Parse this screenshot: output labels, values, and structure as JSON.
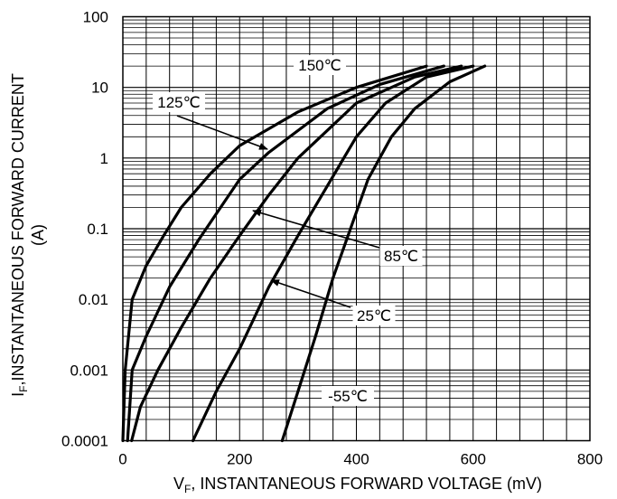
{
  "chart_data": {
    "type": "line",
    "xlabel": {
      "main": "V",
      "sub": "F",
      "rest": ", INSTANTANEOUS FORWARD VOLTAGE (mV)"
    },
    "ylabel": {
      "main": "I",
      "sub": "F",
      "rest": ",INSTANTANEOUS FORWARD CURRENT",
      "line2": "(A)"
    },
    "xlim": [
      0,
      800
    ],
    "ylim": [
      0.0001,
      100
    ],
    "yscale": "log",
    "grid": true,
    "x_ticks": [
      "0",
      "200",
      "400",
      "600",
      "800"
    ],
    "x_tick_values": [
      0,
      200,
      400,
      600,
      800
    ],
    "y_ticks": [
      "0.0001",
      "0.001",
      "0.01",
      "0.1",
      "1",
      "10",
      "100"
    ],
    "y_tick_values": [
      0.0001,
      0.001,
      0.01,
      0.1,
      1,
      10,
      100
    ],
    "series": [
      {
        "name": "150℃",
        "points": [
          [
            0,
            0.0001
          ],
          [
            4,
            0.001
          ],
          [
            16,
            0.01
          ],
          [
            40,
            0.03
          ],
          [
            70,
            0.08
          ],
          [
            100,
            0.2
          ],
          [
            150,
            0.6
          ],
          [
            200,
            1.5
          ],
          [
            300,
            4.5
          ],
          [
            400,
            10
          ],
          [
            520,
            20
          ]
        ]
      },
      {
        "name": "125℃",
        "points": [
          [
            8,
            0.0001
          ],
          [
            16,
            0.001
          ],
          [
            40,
            0.003
          ],
          [
            80,
            0.015
          ],
          [
            130,
            0.07
          ],
          [
            200,
            0.5
          ],
          [
            250,
            1.2
          ],
          [
            350,
            5
          ],
          [
            440,
            11
          ],
          [
            550,
            20
          ]
        ]
      },
      {
        "name": "85℃",
        "points": [
          [
            15,
            0.0001
          ],
          [
            30,
            0.0003
          ],
          [
            60,
            0.001
          ],
          [
            100,
            0.004
          ],
          [
            150,
            0.02
          ],
          [
            200,
            0.08
          ],
          [
            250,
            0.3
          ],
          [
            300,
            1
          ],
          [
            400,
            6
          ],
          [
            500,
            14
          ],
          [
            580,
            20
          ]
        ]
      },
      {
        "name": "25℃",
        "points": [
          [
            120,
            0.0001
          ],
          [
            160,
            0.0005
          ],
          [
            200,
            0.002
          ],
          [
            250,
            0.015
          ],
          [
            300,
            0.08
          ],
          [
            350,
            0.4
          ],
          [
            400,
            2
          ],
          [
            450,
            6
          ],
          [
            520,
            14
          ],
          [
            600,
            20
          ]
        ]
      },
      {
        "name": "-55℃",
        "points": [
          [
            273,
            0.0001
          ],
          [
            300,
            0.0005
          ],
          [
            330,
            0.003
          ],
          [
            360,
            0.02
          ],
          [
            390,
            0.1
          ],
          [
            420,
            0.5
          ],
          [
            460,
            2
          ],
          [
            500,
            5
          ],
          [
            560,
            12
          ],
          [
            620,
            20
          ]
        ]
      }
    ],
    "annotations": [
      {
        "text": "150℃",
        "series": "150℃"
      },
      {
        "text": "125℃",
        "series": "125℃"
      },
      {
        "text": "85℃",
        "series": "85℃"
      },
      {
        "text": "25℃",
        "series": "25℃"
      },
      {
        "text": "-55℃",
        "series": "-55℃"
      }
    ]
  }
}
